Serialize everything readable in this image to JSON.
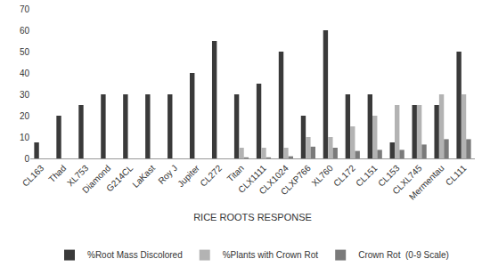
{
  "chart_data": {
    "type": "bar",
    "x_label": "RICE ROOTS RESPONSE",
    "categories": [
      "CL163",
      "Thad",
      "XL753",
      "Diamond",
      "G214CL",
      "LaKast",
      "Roy J",
      "Jupiter",
      "CL272",
      "Titan",
      "CLX1111",
      "CLX1024",
      "CLXP766",
      "XL760",
      "CL172",
      "CL151",
      "CL153",
      "CLXL745",
      "Mermentau",
      "CL111"
    ],
    "series": [
      {
        "name": "%Root Mass Discolored",
        "color": "#3a3a3a",
        "values": [
          7.5,
          20,
          25,
          30,
          30,
          30,
          30,
          40,
          55,
          30,
          35,
          50,
          20,
          60,
          30,
          30,
          7.5,
          25,
          25,
          50
        ]
      },
      {
        "name": "%Plants with Crown Rot",
        "color": "#b3b3b3",
        "values": [
          0,
          0,
          0,
          0,
          0,
          0,
          0,
          0,
          0,
          5,
          5,
          5,
          10,
          10,
          15,
          20,
          25,
          25,
          30,
          30
        ]
      },
      {
        "name": "Crown Rot  (0-9 Scale)",
        "color": "#7a7a7a",
        "values": [
          0,
          0,
          0,
          0,
          0,
          0,
          0,
          0,
          0,
          0.5,
          0.5,
          1,
          5.5,
          5,
          3.5,
          4,
          4,
          6.5,
          9,
          9
        ]
      }
    ],
    "ylim": [
      0,
      70
    ],
    "yticks": [
      0,
      10,
      20,
      30,
      40,
      50,
      60,
      70
    ],
    "grid": false,
    "legend": "bottom"
  }
}
